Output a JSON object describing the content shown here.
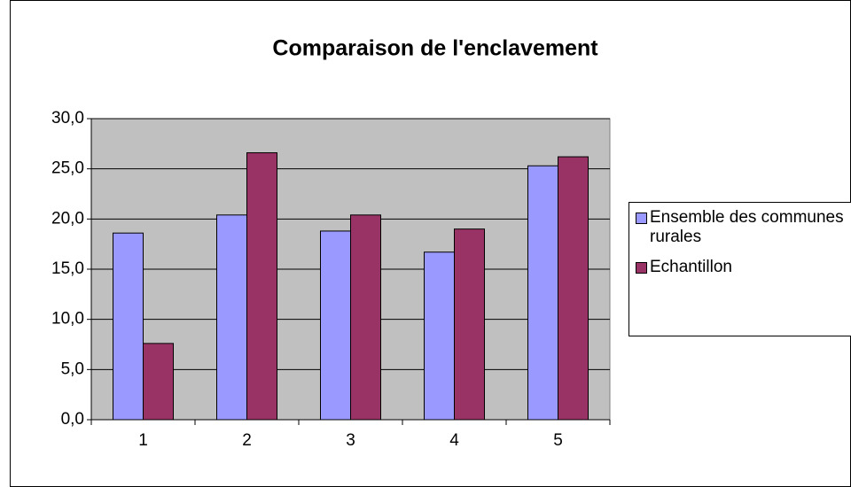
{
  "chart_data": {
    "type": "bar",
    "title": "Comparaison de l'enclavement",
    "categories": [
      "1",
      "2",
      "3",
      "4",
      "5"
    ],
    "series": [
      {
        "name": "Ensemble des communes rurales",
        "color": "#9999ff",
        "values": [
          18.6,
          20.4,
          18.8,
          16.7,
          25.3
        ]
      },
      {
        "name": "Echantillon",
        "color": "#993366",
        "values": [
          7.6,
          26.6,
          20.4,
          19.0,
          26.2
        ]
      }
    ],
    "ylim": [
      0,
      30
    ],
    "yticks": [
      {
        "value": 0,
        "label": "0,0"
      },
      {
        "value": 5,
        "label": "5,0"
      },
      {
        "value": 10,
        "label": "10,0"
      },
      {
        "value": 15,
        "label": "15,0"
      },
      {
        "value": 20,
        "label": "20,0"
      },
      {
        "value": 25,
        "label": "25,0"
      },
      {
        "value": 30,
        "label": "30,0"
      }
    ],
    "grid": true,
    "plot_background": "#c0c0c0",
    "legend": "right"
  }
}
